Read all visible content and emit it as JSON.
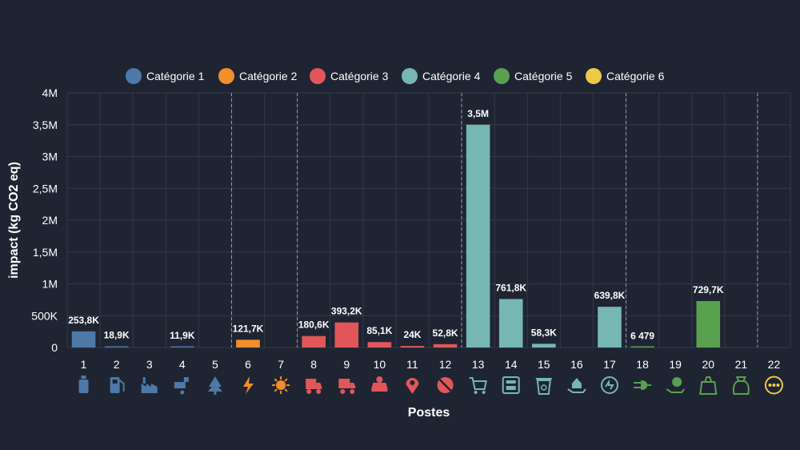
{
  "chart_data": {
    "type": "bar",
    "xlabel": "Postes",
    "ylabel": "impact (kg CO2 eq)",
    "ylim": [
      0,
      4000000
    ],
    "yticks": [
      0,
      500000,
      1000000,
      1500000,
      2000000,
      2500000,
      3000000,
      3500000,
      4000000
    ],
    "ytick_labels": [
      "0",
      "500K",
      "1M",
      "1,5M",
      "2M",
      "2,5M",
      "3M",
      "3,5M",
      "4M"
    ],
    "grid": true,
    "legend_position": "top-center",
    "categories": [
      "1",
      "2",
      "3",
      "4",
      "5",
      "6",
      "7",
      "8",
      "9",
      "10",
      "11",
      "12",
      "13",
      "14",
      "15",
      "16",
      "17",
      "18",
      "19",
      "20",
      "21",
      "22"
    ],
    "legend": [
      {
        "name": "Catégorie 1",
        "color": "#4e79a7"
      },
      {
        "name": "Catégorie 2",
        "color": "#f28e2b"
      },
      {
        "name": "Catégorie 3",
        "color": "#e15759"
      },
      {
        "name": "Catégorie 4",
        "color": "#76b7b2"
      },
      {
        "name": "Catégorie 5",
        "color": "#59a14f"
      },
      {
        "name": "Catégorie 6",
        "color": "#edc948"
      }
    ],
    "category_of_poste": [
      1,
      1,
      1,
      1,
      1,
      2,
      2,
      3,
      3,
      3,
      3,
      3,
      4,
      4,
      4,
      4,
      4,
      5,
      5,
      5,
      5,
      6
    ],
    "values": [
      253800,
      18900,
      0,
      11900,
      0,
      121700,
      0,
      180600,
      393200,
      85100,
      24000,
      52800,
      3500000,
      761800,
      58300,
      0,
      639800,
      6479,
      0,
      729700,
      0,
      0
    ],
    "data_labels": [
      "253,8K",
      "18,9K",
      "",
      "11,9K",
      "",
      "121,7K",
      "",
      "180,6K",
      "393,2K",
      "85,1K",
      "24K",
      "52,8K",
      "3,5M",
      "761,8K",
      "58,3K",
      "",
      "639,8K",
      "6 479",
      "",
      "729,7K",
      "",
      ""
    ],
    "icons": [
      "fuel-jerrycan-icon",
      "gas-pump-icon",
      "factory-icon",
      "faucet-leak-icon",
      "tree-icon",
      "lightning-icon",
      "sun-snowflake-icon",
      "truck-icon",
      "delivery-truck-icon",
      "car-travel-icon",
      "location-pin-icon",
      "no-travel-icon",
      "shopping-cart-icon",
      "building-icon",
      "recycle-bin-icon",
      "hand-house-icon",
      "gauge-icon",
      "plug-icon",
      "hand-money-icon",
      "recycle-bag-icon",
      "euro-bag-icon",
      "more-dots-icon"
    ]
  }
}
